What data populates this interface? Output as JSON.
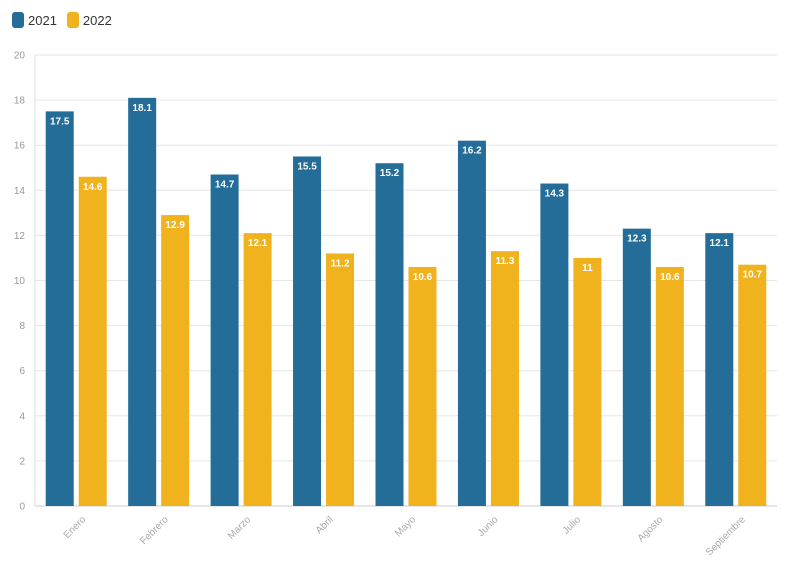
{
  "chart_data": {
    "type": "bar",
    "categories": [
      "Enero",
      "Febrero",
      "Marzo",
      "Abril",
      "Mayo",
      "Junio",
      "Julio",
      "Agosto",
      "Septiembre"
    ],
    "series": [
      {
        "name": "2021",
        "values": [
          17.5,
          18.1,
          14.7,
          15.5,
          15.2,
          16.2,
          14.3,
          12.3,
          12.1
        ]
      },
      {
        "name": "2022",
        "values": [
          14.6,
          12.9,
          12.1,
          11.2,
          10.6,
          11.3,
          11,
          10.6,
          10.7
        ]
      }
    ],
    "ylim": [
      0,
      20
    ],
    "yticks": [
      0,
      2,
      4,
      6,
      8,
      10,
      12,
      14,
      16,
      18,
      20
    ],
    "grid": true,
    "legend_position": "top-left",
    "colors": {
      "2021": "#236d98",
      "2022": "#f0b21d"
    }
  }
}
